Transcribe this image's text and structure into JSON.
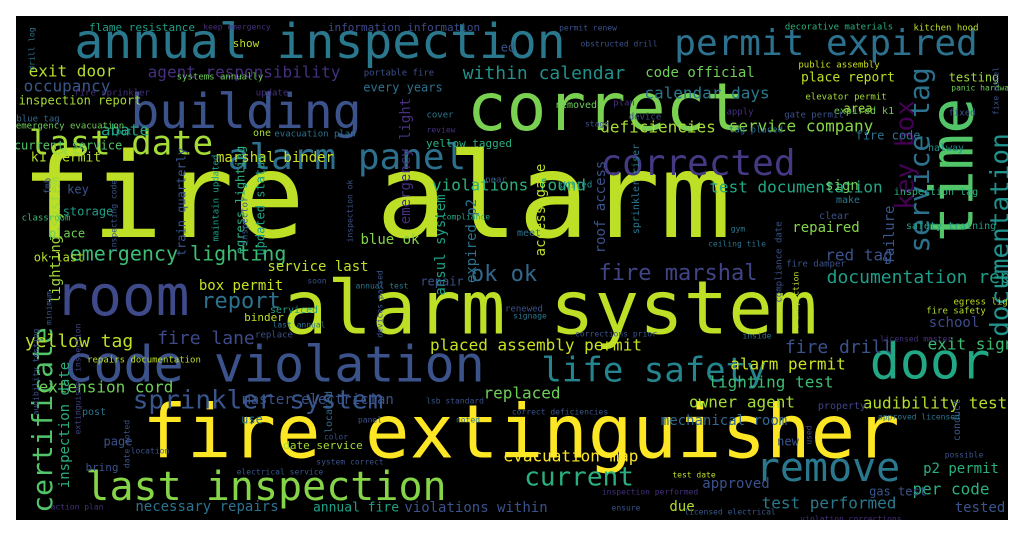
{
  "word_cloud": {
    "words": [
      {
        "text": "fire alarm",
        "color": "#bddf26"
      },
      {
        "text": "alarm system",
        "color": "#bddf26"
      },
      {
        "text": "fire extinguisher",
        "color": "#fde725"
      },
      {
        "text": "correct",
        "color": "#7ad151"
      },
      {
        "text": "annual inspection",
        "color": "#2a788e"
      },
      {
        "text": "permit expired",
        "color": "#2c728e"
      },
      {
        "text": "building",
        "color": "#3b528b"
      },
      {
        "text": "room",
        "color": "#3e4a89"
      },
      {
        "text": "time",
        "color": "#52c569"
      },
      {
        "text": "code violation",
        "color": "#3b528b"
      },
      {
        "text": "door",
        "color": "#22a884"
      },
      {
        "text": "alarm panel",
        "color": "#2d708e"
      },
      {
        "text": "corrected",
        "color": "#443983"
      },
      {
        "text": "last inspection",
        "color": "#86d549"
      },
      {
        "text": "remove",
        "color": "#2a788e"
      },
      {
        "text": "life safety",
        "color": "#25858e"
      },
      {
        "text": "last date",
        "color": "#a5db36"
      },
      {
        "text": "certificate",
        "color": "#52c569"
      },
      {
        "text": "service tag",
        "color": "#2c728e"
      },
      {
        "text": "documentation",
        "color": "#21918c"
      },
      {
        "text": "key box",
        "color": "#440154"
      },
      {
        "text": "sprinkler system",
        "color": "#39568c"
      },
      {
        "text": "current",
        "color": "#2ab07f"
      },
      {
        "text": "fire marshal",
        "color": "#414487"
      },
      {
        "text": "ok ok",
        "color": "#31688e"
      },
      {
        "text": "emergency lighting",
        "color": "#3dbc74"
      },
      {
        "text": "report",
        "color": "#2c728e"
      },
      {
        "text": "agent responsibility",
        "color": "#46307e"
      },
      {
        "text": "calendar days",
        "color": "#2a788e"
      },
      {
        "text": "within calendar",
        "color": "#21918c"
      },
      {
        "text": "code official",
        "color": "#6ece58"
      },
      {
        "text": "exit door",
        "color": "#b5de2b"
      },
      {
        "text": "occupancy",
        "color": "#39568c"
      },
      {
        "text": "abate",
        "color": "#20a486"
      },
      {
        "text": "deficiencies",
        "color": "#a5db36"
      },
      {
        "text": "service company",
        "color": "#86d549"
      },
      {
        "text": "marshal binder",
        "color": "#cae11f"
      },
      {
        "text": "violations found",
        "color": "#2ab07f"
      },
      {
        "text": "test documentation",
        "color": "#22a884"
      },
      {
        "text": "documentation report",
        "color": "#1f9e89"
      },
      {
        "text": "fire lane",
        "color": "#3e4a89"
      },
      {
        "text": "yellow tag",
        "color": "#bddf26"
      },
      {
        "text": "fire drill",
        "color": "#3b528b"
      },
      {
        "text": "exit sign",
        "color": "#3dbc74"
      },
      {
        "text": "alarm permit",
        "color": "#cae11f"
      },
      {
        "text": "lighting test",
        "color": "#3dbc74"
      },
      {
        "text": "audibility test",
        "color": "#b5de2b"
      },
      {
        "text": "owner agent",
        "color": "#a5db36"
      },
      {
        "text": "evacuation map",
        "color": "#fde725"
      },
      {
        "text": "test performed",
        "color": "#2a788e"
      },
      {
        "text": "per code",
        "color": "#2ab07f"
      },
      {
        "text": "tested",
        "color": "#3b528b"
      },
      {
        "text": "necessary repairs",
        "color": "#2c728e"
      },
      {
        "text": "violations within",
        "color": "#3b528b"
      },
      {
        "text": "annual fire",
        "color": "#1fa187"
      },
      {
        "text": "due",
        "color": "#b5de2b"
      },
      {
        "text": "approved",
        "color": "#3b528b"
      },
      {
        "text": "p2 permit",
        "color": "#2ab07f"
      },
      {
        "text": "gas test",
        "color": "#39568c"
      },
      {
        "text": "replaced",
        "color": "#6ece58"
      },
      {
        "text": "mechanical room",
        "color": "#31688e"
      },
      {
        "text": "placed assembly permit",
        "color": "#cae11f"
      },
      {
        "text": "extension cord",
        "color": "#6ece58"
      },
      {
        "text": "inspection date",
        "color": "#2ab07f"
      },
      {
        "text": "master electrician",
        "color": "#3b528b"
      },
      {
        "text": "service last",
        "color": "#bddf26"
      },
      {
        "text": "box permit",
        "color": "#cae11f"
      },
      {
        "text": "red tag",
        "color": "#3b528b"
      },
      {
        "text": "repaired",
        "color": "#86d549"
      },
      {
        "text": "sign",
        "color": "#6ece58"
      },
      {
        "text": "failure",
        "color": "#39568c"
      },
      {
        "text": "school",
        "color": "#3e4a89"
      },
      {
        "text": "blue ok",
        "color": "#86d549"
      },
      {
        "text": "ansul system",
        "color": "#1fa187"
      },
      {
        "text": "expired p2",
        "color": "#2c728e"
      },
      {
        "text": "access gate",
        "color": "#bddf26"
      },
      {
        "text": "roof access",
        "color": "#3b528b"
      },
      {
        "text": "egress lighting",
        "color": "#2ab07f"
      },
      {
        "text": "updated status",
        "color": "#1fa187"
      },
      {
        "text": "train quarterly",
        "color": "#39568c"
      },
      {
        "text": "emergency light",
        "color": "#46307e"
      },
      {
        "text": "every years",
        "color": "#2c728e"
      },
      {
        "text": "lighting system",
        "color": "#9fda3a"
      },
      {
        "text": "k1 permit",
        "color": "#b5de2b"
      },
      {
        "text": "current service",
        "color": "#52c569"
      },
      {
        "text": "inspection report",
        "color": "#a5db36"
      },
      {
        "text": "place report",
        "color": "#bddf26"
      },
      {
        "text": "testing",
        "color": "#9fda3a"
      },
      {
        "text": "area",
        "color": "#a5db36"
      },
      {
        "text": "fire code",
        "color": "#2c728e"
      },
      {
        "text": "expired k1",
        "color": "#6ece58"
      },
      {
        "text": "halway",
        "color": "#21918c"
      },
      {
        "text": "key",
        "color": "#3b528b"
      },
      {
        "text": "storage",
        "color": "#1f9e89"
      },
      {
        "text": "place",
        "color": "#6ece58"
      },
      {
        "text": "ok last",
        "color": "#b5de2b"
      },
      {
        "text": "page",
        "color": "#3b528b"
      },
      {
        "text": "use",
        "color": "#2c728e"
      },
      {
        "text": "new",
        "color": "#39568c"
      },
      {
        "text": "show",
        "color": "#bddf26"
      },
      {
        "text": "flame resistance",
        "color": "#1f9e89"
      },
      {
        "text": "information information",
        "color": "#3e4a89"
      },
      {
        "text": "ed",
        "color": "#3b528b"
      },
      {
        "text": "yellow tagged",
        "color": "#2ab07f"
      },
      {
        "text": "binder",
        "color": "#bddf26"
      },
      {
        "text": "repair",
        "color": "#3b528b"
      },
      {
        "text": "property",
        "color": "#414487"
      },
      {
        "text": "conduct",
        "color": "#39568c"
      },
      {
        "text": "date service",
        "color": "#a5db36"
      },
      {
        "text": "bring",
        "color": "#3b528b"
      },
      {
        "text": "post",
        "color": "#2c728e"
      },
      {
        "text": "located",
        "color": "#31688e"
      },
      {
        "text": "replace",
        "color": "#3b528b"
      },
      {
        "text": "meet",
        "color": "#2c728e"
      },
      {
        "text": "safety training",
        "color": "#1fa187"
      },
      {
        "text": "make",
        "color": "#2a788e"
      },
      {
        "text": "clear",
        "color": "#3b528b"
      },
      {
        "text": "inspection tag",
        "color": "#2ab07f"
      },
      {
        "text": "egress light",
        "color": "#bddf26"
      },
      {
        "text": "fire safety",
        "color": "#b5de2b"
      },
      {
        "text": "sprinkler riser",
        "color": "#2a788e"
      },
      {
        "text": "public assembly",
        "color": "#cae11f"
      },
      {
        "text": "elevator permit",
        "color": "#a5db36"
      },
      {
        "text": "gate permit",
        "color": "#3b528b"
      },
      {
        "text": "fixed",
        "color": "#3b528b"
      },
      {
        "text": "fire sprinkler",
        "color": "#46307e"
      },
      {
        "text": "systems annually",
        "color": "#6ece58"
      },
      {
        "text": "update",
        "color": "#46307e"
      },
      {
        "text": "portable fire",
        "color": "#3b528b"
      },
      {
        "text": "near",
        "color": "#3b528b"
      },
      {
        "text": "removed",
        "color": "#6ece58"
      },
      {
        "text": "plan",
        "color": "#46307e"
      },
      {
        "text": "review",
        "color": "#46307e"
      },
      {
        "text": "cover",
        "color": "#2a788e"
      },
      {
        "text": "device",
        "color": "#3b528b"
      },
      {
        "text": "apply",
        "color": "#46307e"
      },
      {
        "text": "tag placed",
        "color": "#2c728e"
      },
      {
        "text": "blue tag",
        "color": "#31688e"
      },
      {
        "text": "emergency evacuation",
        "color": "#6ece58"
      },
      {
        "text": "evacuation plan",
        "color": "#2c728e"
      },
      {
        "text": "one",
        "color": "#a5db36"
      },
      {
        "text": "put",
        "color": "#1f9e89"
      },
      {
        "text": "fmb",
        "color": "#39568c"
      },
      {
        "text": "classroom",
        "color": "#3dbc74"
      },
      {
        "text": "inspecting code",
        "color": "#39568c"
      },
      {
        "text": "maintain updated",
        "color": "#1fa187"
      },
      {
        "text": "inspector",
        "color": "#39568c"
      },
      {
        "text": "inspection ok",
        "color": "#3b528b"
      },
      {
        "text": "posted",
        "color": "#21918c"
      },
      {
        "text": "compliance",
        "color": "#22a884"
      },
      {
        "text": "gym",
        "color": "#2a788e"
      },
      {
        "text": "ceiling tile",
        "color": "#2c728e"
      },
      {
        "text": "compliance date",
        "color": "#3b528b"
      },
      {
        "text": "fire damper",
        "color": "#3b528b"
      },
      {
        "text": "re inspection",
        "color": "#bddf26"
      },
      {
        "text": "serviced",
        "color": "#1f9e89"
      },
      {
        "text": "last annual",
        "color": "#2c728e"
      },
      {
        "text": "annual test",
        "color": "#2a788e"
      },
      {
        "text": "devices passed",
        "color": "#39568c"
      },
      {
        "text": "soon",
        "color": "#3b528b"
      },
      {
        "text": "minimum",
        "color": "#39568c"
      },
      {
        "text": "renewed",
        "color": "#3b528b"
      },
      {
        "text": "signage",
        "color": "#2a788e"
      },
      {
        "text": "corrections prior",
        "color": "#39568c"
      },
      {
        "text": "inside",
        "color": "#2c728e"
      },
      {
        "text": "licensed master",
        "color": "#46307e"
      },
      {
        "text": "repairs documentation",
        "color": "#bddf26"
      },
      {
        "text": "audibility testing",
        "color": "#3b528b"
      },
      {
        "text": "extinguisher inspection",
        "color": "#414487"
      },
      {
        "text": "lsb standard",
        "color": "#3b528b"
      },
      {
        "text": "correct deficiencies",
        "color": "#3b528b"
      },
      {
        "text": "noted",
        "color": "#2a788e"
      },
      {
        "text": "panel",
        "color": "#3b528b"
      },
      {
        "text": "color",
        "color": "#3b528b"
      },
      {
        "text": "location",
        "color": "#3b528b"
      },
      {
        "text": "used",
        "color": "#414487"
      },
      {
        "text": "approved licensed",
        "color": "#2a788e"
      },
      {
        "text": "possible",
        "color": "#3b528b"
      },
      {
        "text": "electrical service",
        "color": "#39568c"
      },
      {
        "text": "system correct",
        "color": "#3b528b"
      },
      {
        "text": "test date",
        "color": "#bddf26"
      },
      {
        "text": "inspection performed",
        "color": "#46307e"
      },
      {
        "text": "ensure",
        "color": "#3b528b"
      },
      {
        "text": "licensed electrical",
        "color": "#39568c"
      },
      {
        "text": "violation corrections",
        "color": "#46307e"
      },
      {
        "text": "action plan",
        "color": "#46307e"
      },
      {
        "text": "drill log",
        "color": "#2c728e"
      },
      {
        "text": "keep emergency",
        "color": "#46307e"
      },
      {
        "text": "permit renew",
        "color": "#3b528b"
      },
      {
        "text": "obstructed drill",
        "color": "#3b528b"
      },
      {
        "text": "decorative materials",
        "color": "#2ab07f"
      },
      {
        "text": "kitchen hood",
        "color": "#bddf26"
      },
      {
        "text": "panic hardware",
        "color": "#6ece58"
      },
      {
        "text": "fixe panel",
        "color": "#3b528b"
      },
      {
        "text": "stage",
        "color": "#3b528b"
      },
      {
        "text": "date noted",
        "color": "#3b528b"
      }
    ]
  }
}
